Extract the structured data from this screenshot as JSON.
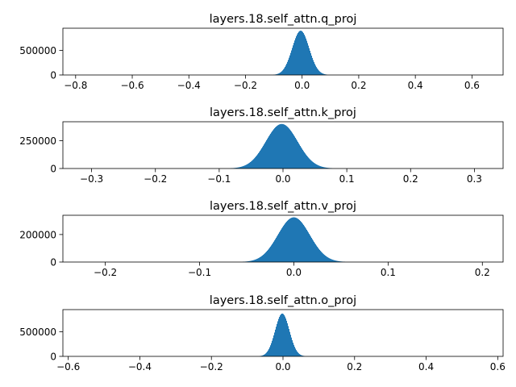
{
  "chart_data": [
    {
      "type": "histogram",
      "title": "layers.18.self_attn.q_proj",
      "xlim": [
        -0.845,
        0.71
      ],
      "ylim": [
        0,
        950000
      ],
      "xticks": [
        -0.8,
        -0.6,
        -0.4,
        -0.2,
        0.0,
        0.2,
        0.4,
        0.6
      ],
      "xtick_labels": [
        "−0.8",
        "−0.6",
        "−0.4",
        "−0.2",
        "0.0",
        "0.2",
        "0.4",
        "0.6"
      ],
      "yticks": [
        0,
        500000
      ],
      "ytick_labels": [
        "0",
        "500000"
      ],
      "peak_x": -0.005,
      "peak_count": 900000,
      "stdev": 0.03,
      "data_range": [
        -0.83,
        0.69
      ],
      "color": "#1f77b4"
    },
    {
      "type": "histogram",
      "title": "layers.18.self_attn.k_proj",
      "xlim": [
        -0.345,
        0.345
      ],
      "ylim": [
        0,
        420000
      ],
      "xticks": [
        -0.3,
        -0.2,
        -0.1,
        0.0,
        0.1,
        0.2,
        0.3
      ],
      "xtick_labels": [
        "−0.3",
        "−0.2",
        "−0.1",
        "0.0",
        "0.1",
        "0.2",
        "0.3"
      ],
      "yticks": [
        0,
        250000
      ],
      "ytick_labels": [
        "0",
        "250000"
      ],
      "peak_x": -0.002,
      "peak_count": 400000,
      "stdev": 0.025,
      "data_range": [
        -0.33,
        0.32
      ],
      "color": "#1f77b4"
    },
    {
      "type": "histogram",
      "title": "layers.18.self_attn.v_proj",
      "xlim": [
        -0.245,
        0.222
      ],
      "ylim": [
        0,
        340000
      ],
      "xticks": [
        -0.2,
        -0.1,
        0.0,
        0.1,
        0.2
      ],
      "xtick_labels": [
        "−0.2",
        "−0.1",
        "0.0",
        "0.1",
        "0.2"
      ],
      "yticks": [
        0,
        200000
      ],
      "ytick_labels": [
        "0",
        "200000"
      ],
      "peak_x": 0.0,
      "peak_count": 325000,
      "stdev": 0.017,
      "data_range": [
        -0.23,
        0.21
      ],
      "color": "#1f77b4"
    },
    {
      "type": "histogram",
      "title": "layers.18.self_attn.o_proj",
      "xlim": [
        -0.615,
        0.615
      ],
      "ylim": [
        0,
        950000
      ],
      "xticks": [
        -0.6,
        -0.4,
        -0.2,
        0.0,
        0.2,
        0.4,
        0.6
      ],
      "xtick_labels": [
        "−0.6",
        "−0.4",
        "−0.2",
        "0.0",
        "0.2",
        "0.4",
        "0.6"
      ],
      "yticks": [
        0,
        500000
      ],
      "ytick_labels": [
        "0",
        "500000"
      ],
      "peak_x": -0.002,
      "peak_count": 870000,
      "stdev": 0.02,
      "data_range": [
        -0.6,
        0.6
      ],
      "color": "#1f77b4"
    }
  ]
}
